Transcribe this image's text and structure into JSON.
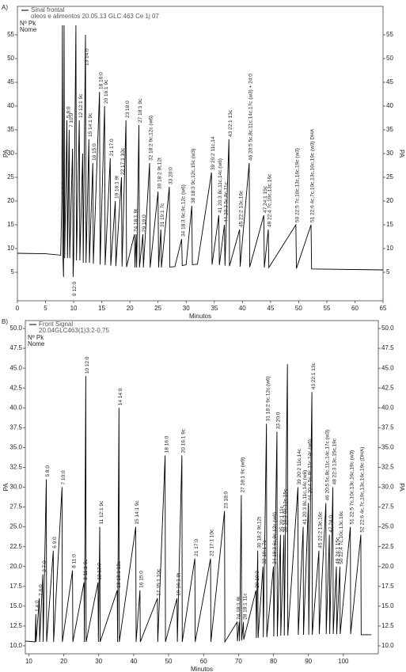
{
  "chart_data": [
    {
      "type": "line",
      "panel_label": "A)",
      "subtitle": "oleos e alimentos 20.05.13 GLC 463 Ce 1j 07",
      "header_lines": [
        "Nº Pk",
        "Nome"
      ],
      "x_label": "Minutos",
      "y_label": "PA",
      "xlim": [
        0,
        65
      ],
      "ylim": [
        -1,
        61
      ],
      "xticks": [
        0,
        5,
        10,
        15,
        20,
        25,
        30,
        35,
        40,
        45,
        50,
        55,
        60,
        65
      ],
      "yticks": [
        5,
        10,
        15,
        20,
        25,
        30,
        35,
        40,
        45,
        50,
        55
      ],
      "x": [
        0,
        5,
        7.7,
        7.9,
        8.0,
        8.1,
        8.2,
        8.3,
        8.4,
        8.8,
        8.9,
        9.2,
        9.3,
        9.8,
        9.9,
        10.0,
        10.4,
        10.5,
        11.0,
        11.1,
        11.6,
        11.7,
        12.1,
        12.2,
        12.7,
        12.8,
        13.4,
        13.5,
        14.6,
        14.7,
        15.5,
        15.6,
        16.5,
        16.6,
        17.4,
        17.5,
        18.5,
        18.6,
        19.3,
        19.4,
        20.8,
        20.9,
        21.1,
        21.2,
        21.6,
        21.7,
        22.3,
        22.4,
        23.5,
        23.6,
        25.0,
        25.1,
        25.5,
        25.6,
        27.0,
        27.1,
        28,
        29.2,
        29.3,
        30,
        31,
        31.1,
        32,
        34.5,
        34.6,
        35.8,
        35.9,
        36.8,
        36.9,
        37.6,
        37.7,
        39.5,
        39.6,
        41.2,
        41.3,
        43.8,
        43.9,
        44.6,
        44.7,
        49.5,
        49.6,
        52.2,
        52.3,
        65
      ],
      "series": [
        {
          "name": "Sinal frontal",
          "color": "#000000",
          "values": [
            9,
            8.9,
            8.6,
            20.5,
            57,
            8,
            4,
            57,
            8,
            37,
            8,
            35,
            8,
            31,
            4,
            8,
            57,
            7.5,
            37,
            7.5,
            30,
            7,
            55,
            7,
            33,
            7,
            28,
            6.8,
            43,
            6.6,
            40,
            6.5,
            29,
            6.4,
            20,
            6.3,
            25,
            6.2,
            37,
            6.1,
            13,
            6,
            13,
            6,
            36,
            6,
            13,
            6,
            28,
            6,
            22,
            6,
            14,
            6,
            23,
            6.1,
            6.2,
            12,
            6.4,
            6.6,
            19,
            6.6,
            6.7,
            26,
            6.6,
            17,
            6.5,
            15,
            6.4,
            33,
            6.3,
            14,
            6.2,
            28,
            6.1,
            17,
            6,
            14,
            6,
            15,
            5.8,
            15,
            5.7,
            5.5
          ]
        }
      ],
      "annotations": [
        {
          "text": "1 4:0",
          "x": 7.9,
          "y": 21
        },
        {
          "text": "5 8:0",
          "x": 8.8,
          "y": 37
        },
        {
          "text": "7 10:0",
          "x": 9.3,
          "y": 35
        },
        {
          "text": "9 12:0",
          "x": 9.9,
          "y": -0.5
        },
        {
          "text": "12 12:1 9c",
          "x": 11.0,
          "y": 37
        },
        {
          "text": "13 14:0",
          "x": 12.1,
          "y": 48
        },
        {
          "text": "15 14:1 9c",
          "x": 12.7,
          "y": 33
        },
        {
          "text": "16 15:0",
          "x": 13.4,
          "y": 28
        },
        {
          "text": "18 16:0",
          "x": 14.6,
          "y": 43
        },
        {
          "text": "20 16:1 9c",
          "x": 15.5,
          "y": 40
        },
        {
          "text": "21 17:0",
          "x": 16.5,
          "y": 29
        },
        {
          "text": "19 16:1 9t",
          "x": 17.4,
          "y": 20
        },
        {
          "text": "22 17:1 10c",
          "x": 18.5,
          "y": 25
        },
        {
          "text": "23 18:0",
          "x": 19.3,
          "y": 37
        },
        {
          "text": "24 18:1 9t",
          "x": 20.8,
          "y": 13
        },
        {
          "text": "27 18:1 9c",
          "x": 21.6,
          "y": 36
        },
        {
          "text": "29 19:0",
          "x": 22.3,
          "y": 13
        },
        {
          "text": "32 18:2 9c,12c (w6)",
          "x": 23.5,
          "y": 28
        },
        {
          "text": "30 18:2 9t,12t",
          "x": 25.0,
          "y": 22
        },
        {
          "text": "31 19:1 7c",
          "x": 25.5,
          "y": 14
        },
        {
          "text": "33 20:0",
          "x": 27.0,
          "y": 23
        },
        {
          "text": "34 18:3 6c,9c,12c (w6)",
          "x": 29.2,
          "y": 12
        },
        {
          "text": "38 18:3 9c,12c,15c (w3)",
          "x": 31,
          "y": 19
        },
        {
          "text": "39 20:2 11c,14",
          "x": 34.5,
          "y": 26
        },
        {
          "text": "41 20:3 8c,11c,14c (w6)",
          "x": 35.8,
          "y": 17
        },
        {
          "text": "44 20:3 5c,8c,11c",
          "x": 36.8,
          "y": 15
        },
        {
          "text": "43 22:1 13c",
          "x": 37.6,
          "y": 33
        },
        {
          "text": "45 22:2 13c,16c",
          "x": 39.5,
          "y": 14
        },
        {
          "text": "46 20:5 5c,8c,11c,14c,17c (w3) + 24:0",
          "x": 41.2,
          "y": 28
        },
        {
          "text": "47 24:1 15c",
          "x": 43.8,
          "y": 17
        },
        {
          "text": "49 22:4 7c,10c,13c,16c",
          "x": 44.6,
          "y": 14
        },
        {
          "text": "50 22:5 7c,10c,13c,16c,19c (w3)",
          "x": 49.5,
          "y": 15
        },
        {
          "text": "51 22:6 4c,7c,10c,13c,16c,19c (w3) DHA",
          "x": 52.2,
          "y": 15
        }
      ]
    },
    {
      "type": "line",
      "panel_label": "B)",
      "subtitle": "20.04GLC463(1)3.2-0,75",
      "header_lines": [
        "Nº Pk",
        "Nome"
      ],
      "x_label": "Minutos",
      "y_label": "PA",
      "xlim": [
        9,
        110
      ],
      "ylim": [
        9,
        51
      ],
      "xticks": [
        10,
        20,
        30,
        40,
        50,
        60,
        70,
        80,
        90,
        100
      ],
      "yticks": [
        {
          "value": 10,
          "label": "10.0"
        },
        12.5,
        {
          "value": 15,
          "label": "15.0"
        },
        17.5,
        {
          "value": 20,
          "label": "20.0"
        },
        22.5,
        {
          "value": 25,
          "label": "25.0"
        },
        27.5,
        {
          "value": 30,
          "label": "30.0"
        },
        32.5,
        {
          "value": 35,
          "label": "35.0"
        },
        37.5,
        {
          "value": 40,
          "label": "40.0"
        },
        42.5,
        {
          "value": 45,
          "label": "45.0"
        },
        47.5,
        {
          "value": 50,
          "label": "50.0"
        }
      ],
      "x": [
        9,
        11.8,
        12,
        12.1,
        13,
        13.1,
        14,
        14.1,
        15,
        15.1,
        17,
        17.1,
        19.5,
        19.6,
        22.5,
        22.6,
        25.8,
        25.9,
        26.3,
        26.4,
        29.8,
        29.9,
        30.3,
        30.4,
        35.3,
        35.4,
        35.8,
        35.9,
        40.6,
        40.7,
        41.8,
        41.9,
        46.8,
        46.9,
        49,
        49.1,
        52.4,
        52.5,
        53.8,
        53.9,
        57.5,
        57.6,
        62,
        62.1,
        66,
        66.1,
        69.6,
        69.7,
        70.2,
        70.3,
        70.8,
        70.9,
        71.4,
        71.5,
        75,
        75.1,
        75.5,
        75.6,
        77,
        77.1,
        78,
        78.1,
        80,
        80.1,
        81,
        81.1,
        82,
        82.1,
        83,
        83.1,
        84,
        84.1,
        87,
        87.1,
        88.5,
        88.6,
        90,
        90.1,
        91,
        91.1,
        93,
        93.1,
        95,
        95.1,
        96,
        96.1,
        97,
        97.1,
        98,
        98.1,
        99,
        99.1,
        102,
        102.1,
        105,
        105.1,
        108
      ],
      "series": [
        {
          "name": "Front Signal",
          "color": "#000000",
          "values": [
            10.6,
            10.5,
            14,
            10.5,
            16,
            10.5,
            19,
            10.5,
            31,
            10.5,
            22,
            10.5,
            30,
            10.5,
            19.5,
            10.5,
            18,
            10.5,
            44,
            10.5,
            18,
            10.5,
            25,
            10.5,
            17,
            10.5,
            40,
            10.5,
            25,
            10.5,
            17,
            10.5,
            16,
            10.5,
            34,
            10.5,
            16,
            10.5,
            34,
            10.5,
            21,
            10.5,
            21,
            10.5,
            27,
            10.5,
            13,
            10.6,
            13,
            10.6,
            29,
            10.7,
            13,
            10.8,
            17,
            11,
            22,
            11,
            20,
            11.1,
            38,
            11.1,
            20,
            11.2,
            37,
            11.2,
            24,
            11.3,
            24,
            11.3,
            45.5,
            11.3,
            30,
            11.4,
            25,
            11.4,
            28,
            11.4,
            42,
            11.4,
            22,
            11.5,
            28,
            11.5,
            24,
            11.5,
            30,
            11.5,
            20,
            11.5,
            20,
            11.5,
            25,
            11.5,
            24,
            11.4,
            11.4
          ]
        }
      ],
      "annotations": [
        {
          "text": "1 4:0",
          "x": 12,
          "y": 14
        },
        {
          "text": "2 6:0",
          "x": 13,
          "y": 16
        },
        {
          "text": "3 7:0",
          "x": 14,
          "y": 19
        },
        {
          "text": "5 8:0",
          "x": 15,
          "y": 31
        },
        {
          "text": "6 9:0",
          "x": 17,
          "y": 22
        },
        {
          "text": "7 10:0",
          "x": 19.5,
          "y": 30
        },
        {
          "text": "8 11:0",
          "x": 22.5,
          "y": 19.5
        },
        {
          "text": "9 11:1 6c",
          "x": 25.8,
          "y": 18
        },
        {
          "text": "10 12:0",
          "x": 26.3,
          "y": 44
        },
        {
          "text": "12 13:0",
          "x": 29.8,
          "y": 18
        },
        {
          "text": "11 12:1 9c",
          "x": 30.3,
          "y": 25
        },
        {
          "text": "13 13:1 12c",
          "x": 35.3,
          "y": 17
        },
        {
          "text": "14 14:0",
          "x": 35.8,
          "y": 40
        },
        {
          "text": "15 14:1 9c",
          "x": 40.6,
          "y": 25
        },
        {
          "text": "16 15:0",
          "x": 41.8,
          "y": 17
        },
        {
          "text": "17 15:1 10c",
          "x": 46.8,
          "y": 16
        },
        {
          "text": "18 16:0",
          "x": 49,
          "y": 34
        },
        {
          "text": "19 16:1 9t",
          "x": 52.4,
          "y": 16
        },
        {
          "text": "20 16:1 9c",
          "x": 53.8,
          "y": 34
        },
        {
          "text": "21 17:0",
          "x": 57.5,
          "y": 21
        },
        {
          "text": "22 17:1 10c",
          "x": 62,
          "y": 21
        },
        {
          "text": "23 18:0",
          "x": 66,
          "y": 27
        },
        {
          "text": "24 18:1 9t",
          "x": 69.6,
          "y": 13
        },
        {
          "text": "27 18:1 9c (w9)",
          "x": 70.8,
          "y": 29
        },
        {
          "text": "28 18:1 11c",
          "x": 71.4,
          "y": 13
        },
        {
          "text": "29 19:0",
          "x": 75,
          "y": 17
        },
        {
          "text": "30 18:2 9t,12t",
          "x": 75.5,
          "y": 22
        },
        {
          "text": "32 19:1 7c",
          "x": 77,
          "y": 20
        },
        {
          "text": "31 18:2 9c,12c (w6)",
          "x": 78,
          "y": 38
        },
        {
          "text": "34 18:3 6c,9c,12c (w6)",
          "x": 80,
          "y": 20
        },
        {
          "text": "33 20:0",
          "x": 81,
          "y": 37
        },
        {
          "text": "35 20:1 11c",
          "x": 82,
          "y": 24
        },
        {
          "text": "38 18:3 9c,12c,15c",
          "x": 83,
          "y": 24
        },
        {
          "text": "39 20:2 11c,14c",
          "x": 87,
          "y": 30
        },
        {
          "text": "41 20:3 8c,11c,14c (w6)",
          "x": 88.5,
          "y": 25
        },
        {
          "text": "44 20:4 5c,8c,11c,14c (w6)",
          "x": 90,
          "y": 28
        },
        {
          "text": "43 22:1 13c",
          "x": 91,
          "y": 42
        },
        {
          "text": "45 22:2 13c,16c",
          "x": 93,
          "y": 22
        },
        {
          "text": "46 20:5 5c,8c,11c,14c,17c (w3)",
          "x": 95,
          "y": 28
        },
        {
          "text": "47 24:0",
          "x": 96,
          "y": 24
        },
        {
          "text": "48 22:3 13c,15c,19c",
          "x": 97,
          "y": 30
        },
        {
          "text": "49 24:1 15c",
          "x": 98,
          "y": 20
        },
        {
          "text": "50 22:4 7c,10c,13c,16c",
          "x": 99,
          "y": 20
        },
        {
          "text": "51 22:5 7c,10c,13c,16c,19c (w3)",
          "x": 102,
          "y": 25
        },
        {
          "text": "52 22:6 4c,7c,10c,13c,16c,19c (DHA)",
          "x": 105,
          "y": 24
        }
      ]
    }
  ]
}
